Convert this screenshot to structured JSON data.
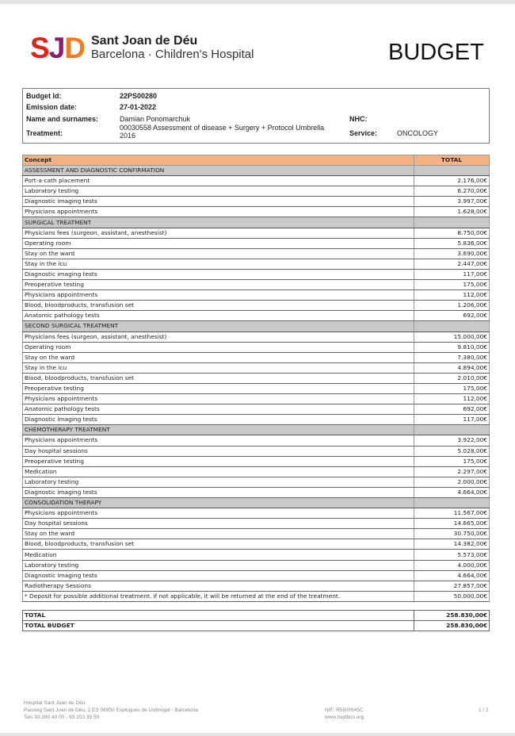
{
  "header": {
    "logo_mark": "SJD",
    "logo_line1": "Sant Joan de Déu",
    "logo_line2": "Barcelona · Children's Hospital",
    "title": "BUDGET"
  },
  "info": {
    "budget_id_label": "Budget Id:",
    "budget_id": "22PS00280",
    "emission_label": "Emission date:",
    "emission_date": "27-01-2022",
    "name_label": "Name and surnames:",
    "name": "Damian Ponomarchuk",
    "treatment_label": "Treatment:",
    "treatment": "00030558 Assessment of disease + Surgery + Protocol Umbrella 2016",
    "nhc_label": "NHC:",
    "nhc": "",
    "service_label": "Service:",
    "service": "ONCOLOGY"
  },
  "table": {
    "headers": [
      "Concept",
      "TOTAL"
    ],
    "rows": [
      {
        "section": "ASSESSMENT AND DIAGNOSTIC CONFIRMATION"
      },
      {
        "concept": "Port-a-cath placement",
        "total": "2.176,00€"
      },
      {
        "concept": "Laboratory testing",
        "total": "6.270,00€"
      },
      {
        "concept": "Diagnostic imaging tests",
        "total": "3.997,00€"
      },
      {
        "concept": "Physicians appointments",
        "total": "1.628,00€"
      },
      {
        "section": "SURGICAL TREATMENT"
      },
      {
        "concept": "Physicians fees (surgeon, assistant, anesthesist)",
        "total": "8.750,00€"
      },
      {
        "concept": "Operating room",
        "total": "5.836,00€"
      },
      {
        "concept": "Stay on the ward",
        "total": "3.690,00€"
      },
      {
        "concept": "Stay in the icu",
        "total": "2.447,00€"
      },
      {
        "concept": "Diagnostic imaging tests",
        "total": "117,00€"
      },
      {
        "concept": "Preoperative testing",
        "total": "175,00€"
      },
      {
        "concept": "Physicians appointments",
        "total": "112,00€"
      },
      {
        "concept": "Blood, bloodproducts, transfusion set",
        "total": "1.206,00€"
      },
      {
        "concept": "Anatomic pathology tests",
        "total": "692,00€"
      },
      {
        "section": "SECOND SURGICAL TREATMENT"
      },
      {
        "concept": "Physicians fees (surgeon, assistant, anesthesist)",
        "total": "15.000,00€"
      },
      {
        "concept": "Operating room",
        "total": "9.810,00€"
      },
      {
        "concept": "Stay on the ward",
        "total": "7.380,00€"
      },
      {
        "concept": "Stay in the icu",
        "total": "4.894,00€"
      },
      {
        "concept": "Blood, bloodproducts, transfusion set",
        "total": "2.010,00€"
      },
      {
        "concept": "Preoperative testing",
        "total": "175,00€"
      },
      {
        "concept": "Physicians appointments",
        "total": "112,00€"
      },
      {
        "concept": "Anatomic pathology tests",
        "total": "692,00€"
      },
      {
        "concept": "Diagnostic imaging tests",
        "total": "117,00€"
      },
      {
        "section": "CHEMOTHERAPY TREATMENT"
      },
      {
        "concept": "Physicians appointments",
        "total": "3.922,00€"
      },
      {
        "concept": "Day hospital sessions",
        "total": "5.028,00€"
      },
      {
        "concept": "Preoperative testing",
        "total": "175,00€"
      },
      {
        "concept": "Medication",
        "total": "2.297,00€"
      },
      {
        "concept": "Laboratory testing",
        "total": "2.000,00€"
      },
      {
        "concept": "Diagnostic imaging tests",
        "total": "4.664,00€"
      },
      {
        "section": "CONSOLIDATION THERAPY"
      },
      {
        "concept": "Physicians appointments",
        "total": "11.567,00€"
      },
      {
        "concept": "Day hospital sessions",
        "total": "14.665,00€"
      },
      {
        "concept": "Stay on the ward",
        "total": "30.750,00€"
      },
      {
        "concept": "Blood, bloodproducts, transfusion set",
        "total": "14.382,00€"
      },
      {
        "concept": "Medication",
        "total": "5.573,00€"
      },
      {
        "concept": "Laboratory testing",
        "total": "4.000,00€"
      },
      {
        "concept": "Diagnostic imaging tests",
        "total": "4.664,00€"
      },
      {
        "concept": "Radiotherapy Sessions",
        "total": "27.857,00€"
      },
      {
        "concept": "* Deposit for possible additional treatment. if not applicable, it will be returned at the end of the treatment.",
        "total": "50.000,00€"
      }
    ],
    "totals": [
      {
        "label": "TOTAL",
        "value": "258.830,00€"
      },
      {
        "label": "TOTAL BUDGET",
        "value": "258.830,00€"
      }
    ]
  },
  "footer": {
    "name": "Hospital Sant Joan de Déu",
    "address": "Passeig Sant Joan de Déu, 2 ES 08950 Esplugues de Llobregat - Barcelona",
    "phones": "Tels 93 280 40 00 - 93 203 39 59",
    "nif": "NIF: R5800645C",
    "web": "www.hsjdbcn.org",
    "page": "1 / 2"
  }
}
